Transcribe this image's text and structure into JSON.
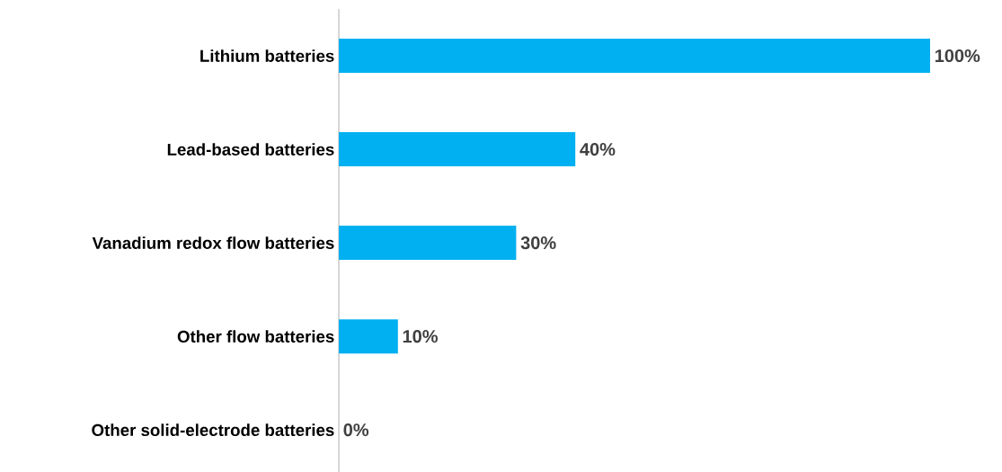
{
  "chart_data": {
    "type": "bar",
    "orientation": "horizontal",
    "categories": [
      "Lithium batteries",
      "Lead-based batteries",
      "Vanadium redox flow batteries",
      "Other flow batteries",
      "Other solid-electrode batteries"
    ],
    "values": [
      100,
      40,
      30,
      10,
      0
    ],
    "value_labels": [
      "100%",
      "40%",
      "30%",
      "10%",
      "0%"
    ],
    "color": "#00b0f0",
    "xlim": [
      0,
      100
    ],
    "tick_labels": "y"
  }
}
